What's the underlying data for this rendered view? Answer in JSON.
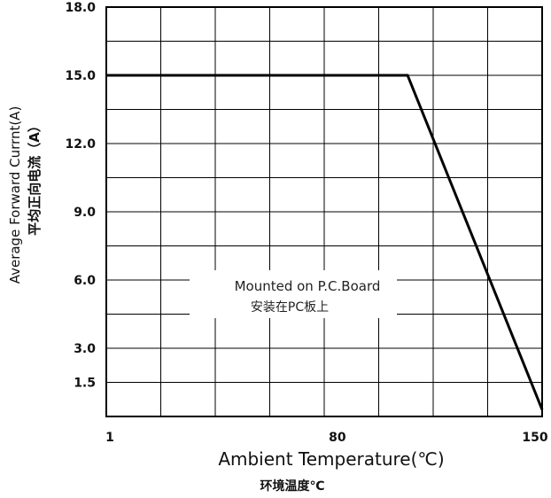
{
  "chart_data": {
    "type": "line",
    "xlabel": "Ambient Temperature(℃)",
    "xlabel_cn": "环境温度℃",
    "ylabel": "Average Forward Currnt(A)",
    "ylabel_cn": "平均正向电流（A）",
    "xlim": [
      1,
      150
    ],
    "ylim": [
      0,
      18
    ],
    "x_ticks": [
      {
        "value": 1,
        "label": "1"
      },
      {
        "value": 80,
        "label": "80"
      },
      {
        "value": 150,
        "label": "150"
      }
    ],
    "y_ticks": [
      {
        "value": 1.5,
        "label": "1.5"
      },
      {
        "value": 3,
        "label": "3.0"
      },
      {
        "value": 6,
        "label": "6.0"
      },
      {
        "value": 9,
        "label": "9.0"
      },
      {
        "value": 12,
        "label": "12.0"
      },
      {
        "value": 15,
        "label": "15.0"
      },
      {
        "value": 18,
        "label": "18.0"
      }
    ],
    "grid": true,
    "grid_cols": 8,
    "grid_rows": 12,
    "series": [
      {
        "x": [
          1,
          104,
          150
        ],
        "y": [
          15,
          15,
          0.3
        ]
      }
    ],
    "annotation": {
      "text": "Mounted on P.C.Board",
      "text_cn": "安装在PC板上"
    }
  }
}
